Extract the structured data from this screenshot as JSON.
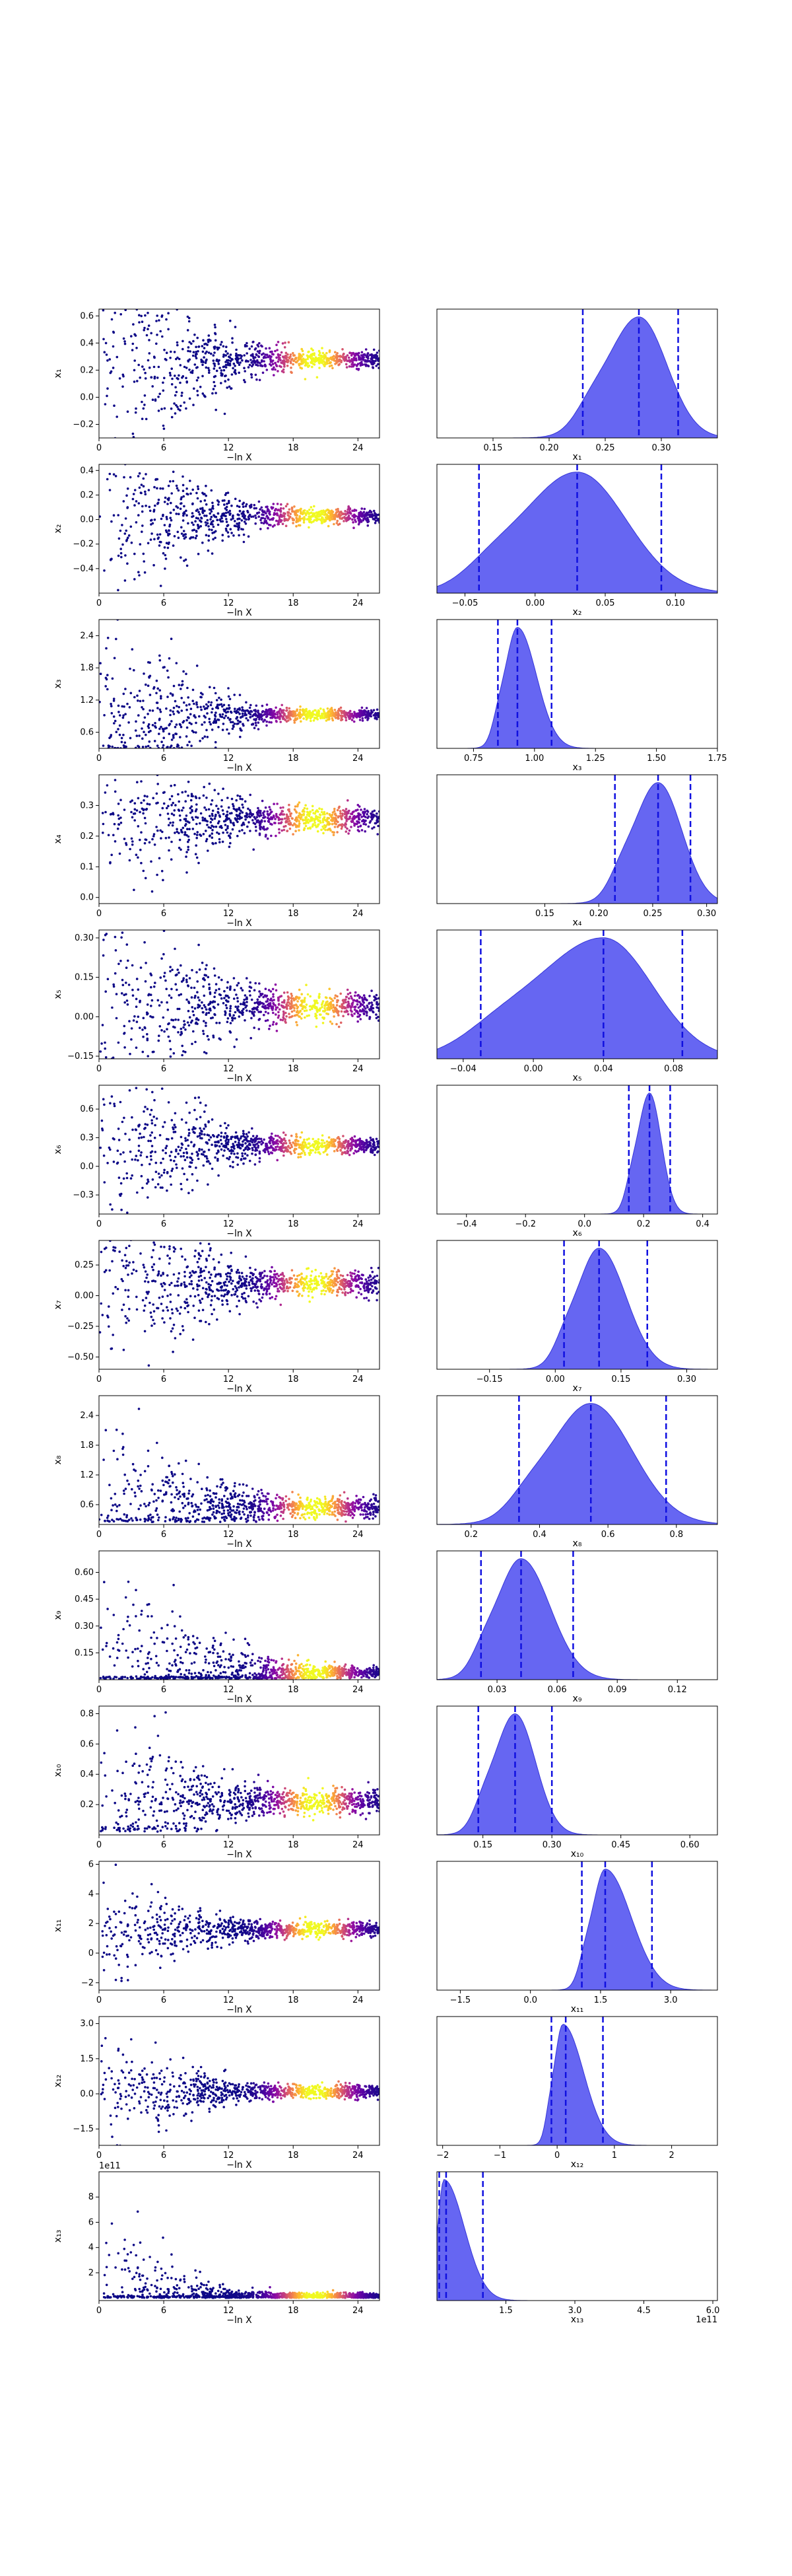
{
  "chart_data": {
    "type": "trace",
    "title": "",
    "xlabel_left": "−ln X",
    "left_xlim": [
      0,
      26
    ],
    "left_xticks": [
      "0",
      "6",
      "12",
      "18",
      "24"
    ],
    "rows": [
      {
        "ylabel": "x₁",
        "ylim": [
          -0.3,
          0.65
        ],
        "yticks": [
          -0.2,
          0.0,
          0.2,
          0.4,
          0.6
        ],
        "yticklabels": [
          "−0.2",
          "0.0",
          "0.2",
          "0.4",
          "0.6"
        ],
        "hist_xlabel": "x₁",
        "hist_xlim": [
          0.1,
          0.35
        ],
        "hist_xticks": [
          0.15,
          0.2,
          0.25,
          0.3
        ],
        "hist_xticklabels": [
          "0.15",
          "0.20",
          "0.25",
          "0.30"
        ],
        "mean": 0.28,
        "quantiles": [
          0.23,
          0.28,
          0.315
        ],
        "sd": 0.025,
        "start_spread": 0.4,
        "final_spread": 0.03,
        "sensitivity": 8,
        "clip_below": null,
        "exponent": ""
      },
      {
        "ylabel": "x₂",
        "ylim": [
          -0.6,
          0.45
        ],
        "yticks": [
          -0.4,
          -0.2,
          0.0,
          0.2,
          0.4
        ],
        "yticklabels": [
          "−0.4",
          "−0.2",
          "0.0",
          "0.2",
          "0.4"
        ],
        "hist_xlabel": "x₂",
        "hist_xlim": [
          -0.07,
          0.13
        ],
        "hist_xticks": [
          -0.05,
          0.0,
          0.05,
          0.1
        ],
        "hist_xticklabels": [
          "−0.05",
          "0.00",
          "0.05",
          "0.10"
        ],
        "mean": 0.03,
        "quantiles": [
          -0.04,
          0.03,
          0.09
        ],
        "sd": 0.035,
        "start_spread": 0.35,
        "final_spread": 0.03,
        "sensitivity": 8,
        "clip_below": null,
        "exponent": ""
      },
      {
        "ylabel": "x₃",
        "ylim": [
          0.3,
          2.7
        ],
        "yticks": [
          0.6,
          1.2,
          1.8,
          2.4
        ],
        "yticklabels": [
          "0.6",
          "1.2",
          "1.8",
          "2.4"
        ],
        "hist_xlabel": "x₃",
        "hist_xlim": [
          0.6,
          1.75
        ],
        "hist_xticks": [
          0.75,
          1.0,
          1.25,
          1.5,
          1.75
        ],
        "hist_xticklabels": [
          "0.75",
          "1.00",
          "1.25",
          "1.50",
          "1.75"
        ],
        "mean": 0.93,
        "quantiles": [
          0.85,
          0.93,
          1.07
        ],
        "sd": 0.05,
        "start_spread": 0.8,
        "final_spread": 0.05,
        "sensitivity": 8,
        "clip_below": 0.3,
        "exponent": ""
      },
      {
        "ylabel": "x₄",
        "ylim": [
          -0.02,
          0.4
        ],
        "yticks": [
          0.0,
          0.1,
          0.2,
          0.3
        ],
        "yticklabels": [
          "0.0",
          "0.1",
          "0.2",
          "0.3"
        ],
        "hist_xlabel": "x₄",
        "hist_xlim": [
          0.05,
          0.31
        ],
        "hist_xticks": [
          0.15,
          0.2,
          0.25,
          0.3
        ],
        "hist_xticklabels": [
          "0.15",
          "0.20",
          "0.25",
          "0.30"
        ],
        "mean": 0.255,
        "quantiles": [
          0.215,
          0.255,
          0.285
        ],
        "sd": 0.022,
        "start_spread": 0.15,
        "final_spread": 0.02,
        "sensitivity": 8,
        "clip_below": null,
        "exponent": ""
      },
      {
        "ylabel": "x₅",
        "ylim": [
          -0.16,
          0.33
        ],
        "yticks": [
          -0.15,
          0.0,
          0.15,
          0.3
        ],
        "yticklabels": [
          "−0.15",
          "0.00",
          "0.15",
          "0.30"
        ],
        "hist_xlabel": "x₅",
        "hist_xlim": [
          -0.055,
          0.105
        ],
        "hist_xticks": [
          -0.04,
          0.0,
          0.04,
          0.08
        ],
        "hist_xticklabels": [
          "−0.04",
          "0.00",
          "0.04",
          "0.08"
        ],
        "mean": 0.04,
        "quantiles": [
          -0.03,
          0.04,
          0.085
        ],
        "sd": 0.028,
        "start_spread": 0.18,
        "final_spread": 0.025,
        "sensitivity": 8,
        "clip_below": null,
        "exponent": ""
      },
      {
        "ylabel": "x₆",
        "ylim": [
          -0.5,
          0.85
        ],
        "yticks": [
          -0.3,
          0.0,
          0.3,
          0.6
        ],
        "yticklabels": [
          "−0.3",
          "0.0",
          "0.3",
          "0.6"
        ],
        "hist_xlabel": "x₆",
        "hist_xlim": [
          -0.5,
          0.45
        ],
        "hist_xticks": [
          -0.4,
          -0.2,
          0.0,
          0.2,
          0.4
        ],
        "hist_xticklabels": [
          "−0.4",
          "−0.2",
          "0.0",
          "0.2",
          "0.4"
        ],
        "mean": 0.22,
        "quantiles": [
          0.15,
          0.22,
          0.29
        ],
        "sd": 0.04,
        "start_spread": 0.45,
        "final_spread": 0.04,
        "sensitivity": 8,
        "clip_below": null,
        "exponent": ""
      },
      {
        "ylabel": "x₇",
        "ylim": [
          -0.6,
          0.45
        ],
        "yticks": [
          -0.5,
          -0.25,
          0.0,
          0.25
        ],
        "yticklabels": [
          "−0.50",
          "−0.25",
          "0.00",
          "0.25"
        ],
        "hist_xlabel": "x₇",
        "hist_xlim": [
          -0.27,
          0.37
        ],
        "hist_xticks": [
          -0.15,
          0.0,
          0.15,
          0.3
        ],
        "hist_xticklabels": [
          "−0.15",
          "0.00",
          "0.15",
          "0.30"
        ],
        "mean": 0.1,
        "quantiles": [
          0.02,
          0.1,
          0.21
        ],
        "sd": 0.05,
        "start_spread": 0.35,
        "final_spread": 0.05,
        "sensitivity": 8,
        "clip_below": null,
        "exponent": ""
      },
      {
        "ylabel": "x₈",
        "ylim": [
          0.2,
          2.8
        ],
        "yticks": [
          0.6,
          1.2,
          1.8,
          2.4
        ],
        "yticklabels": [
          "0.6",
          "1.2",
          "1.8",
          "2.4"
        ],
        "hist_xlabel": "x₈",
        "hist_xlim": [
          0.1,
          0.92
        ],
        "hist_xticks": [
          0.2,
          0.4,
          0.6,
          0.8
        ],
        "hist_xticklabels": [
          "0.2",
          "0.4",
          "0.6",
          "0.8"
        ],
        "mean": 0.55,
        "quantiles": [
          0.34,
          0.55,
          0.77
        ],
        "sd": 0.1,
        "start_spread": 0.9,
        "final_spread": 0.1,
        "sensitivity": 8,
        "clip_below": 0.25,
        "exponent": ""
      },
      {
        "ylabel": "x₉",
        "ylim": [
          0.0,
          0.72
        ],
        "yticks": [
          0.15,
          0.3,
          0.45,
          0.6
        ],
        "yticklabels": [
          "0.15",
          "0.30",
          "0.45",
          "0.60"
        ],
        "hist_xlabel": "x₉",
        "hist_xlim": [
          0.0,
          0.14
        ],
        "hist_xticks": [
          0.03,
          0.06,
          0.09,
          0.12
        ],
        "hist_xticklabels": [
          "0.03",
          "0.06",
          "0.09",
          "0.12"
        ],
        "mean": 0.042,
        "quantiles": [
          0.022,
          0.042,
          0.068
        ],
        "sd": 0.012,
        "start_spread": 0.25,
        "final_spread": 0.012,
        "sensitivity": 5,
        "clip_below": 0.005,
        "exponent": ""
      },
      {
        "ylabel": "x₁₀",
        "ylim": [
          0.0,
          0.85
        ],
        "yticks": [
          0.2,
          0.4,
          0.6,
          0.8
        ],
        "yticklabels": [
          "0.2",
          "0.4",
          "0.6",
          "0.8"
        ],
        "hist_xlabel": "x₁₀",
        "hist_xlim": [
          0.05,
          0.66
        ],
        "hist_xticks": [
          0.15,
          0.3,
          0.45,
          0.6
        ],
        "hist_xticklabels": [
          "0.15",
          "0.30",
          "0.45",
          "0.60"
        ],
        "mean": 0.22,
        "quantiles": [
          0.14,
          0.22,
          0.3
        ],
        "sd": 0.04,
        "start_spread": 0.3,
        "final_spread": 0.04,
        "sensitivity": 10,
        "clip_below": 0.02,
        "exponent": ""
      },
      {
        "ylabel": "x₁₁",
        "ylim": [
          -2.5,
          6.2
        ],
        "yticks": [
          -2,
          0,
          2,
          4,
          6
        ],
        "yticklabels": [
          "−2",
          "0",
          "2",
          "4",
          "6"
        ],
        "hist_xlabel": "x₁₁",
        "hist_xlim": [
          -2.0,
          4.0
        ],
        "hist_xticks": [
          -1.5,
          0.0,
          1.5,
          3.0
        ],
        "hist_xticklabels": [
          "−1.5",
          "0.0",
          "1.5",
          "3.0"
        ],
        "mean": 1.6,
        "quantiles": [
          1.1,
          1.6,
          2.6
        ],
        "sd": 0.25,
        "start_spread": 1.6,
        "final_spread": 0.25,
        "sensitivity": 9,
        "clip_below": null,
        "exponent": ""
      },
      {
        "ylabel": "x₁₂",
        "ylim": [
          -2.2,
          3.3
        ],
        "yticks": [
          -1.5,
          0.0,
          1.5,
          3.0
        ],
        "yticklabels": [
          "−1.5",
          "0.0",
          "1.5",
          "3.0"
        ],
        "hist_xlabel": "x₁₂",
        "hist_xlim": [
          -2.1,
          2.8
        ],
        "hist_xticks": [
          -2,
          -1,
          0,
          1,
          2
        ],
        "hist_xticklabels": [
          "−2",
          "−1",
          "0",
          "1",
          "2"
        ],
        "mean": 0.1,
        "quantiles": [
          -0.1,
          0.15,
          0.8
        ],
        "sd": 0.15,
        "start_spread": 1.0,
        "final_spread": 0.15,
        "sensitivity": 9,
        "clip_below": null,
        "exponent": ""
      },
      {
        "ylabel": "x₁₃",
        "ylim": [
          -0.2,
          10.0
        ],
        "yticks": [
          2,
          4,
          6,
          8
        ],
        "yticklabels": [
          "2",
          "4",
          "6",
          "8"
        ],
        "hist_xlabel": "x₁₃",
        "hist_xlim": [
          0.0,
          6.1
        ],
        "hist_xticks": [
          1.5,
          3.0,
          4.5,
          6.0
        ],
        "hist_xticklabels": [
          "1.5",
          "3.0",
          "4.5",
          "6.0"
        ],
        "mean": 0.15,
        "quantiles": [
          0.05,
          0.2,
          1.0
        ],
        "sd": 0.12,
        "start_spread": 3.0,
        "final_spread": 0.15,
        "sensitivity": 12,
        "clip_below": 0.02,
        "exponent": "1e11"
      }
    ]
  }
}
